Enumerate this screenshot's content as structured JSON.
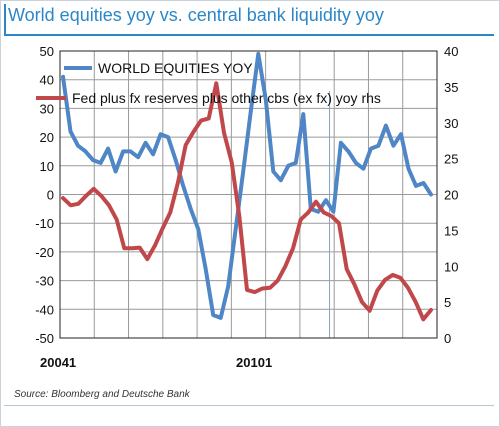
{
  "header": {
    "title": "World equities yoy vs. central bank liquidity yoy"
  },
  "footer": {
    "source": "Source: Bloomberg and Deutsche Bank"
  },
  "colors": {
    "equities": "#4f86c6",
    "liquidity": "#c0484b",
    "accent": "#2b87c8",
    "grid": "#9a9a9a"
  },
  "chart_data": {
    "type": "line",
    "title": "",
    "xlabel": "",
    "ylabel": "",
    "x_tick_labels": [
      "20041",
      "20101"
    ],
    "ylim": [
      -50,
      50
    ],
    "y_ticks": [
      50,
      40,
      30,
      20,
      10,
      0,
      -10,
      -20,
      -30,
      -40,
      -50
    ],
    "y2lim": [
      0,
      40
    ],
    "y2_ticks": [
      40,
      35,
      30,
      25,
      20,
      15,
      10,
      5,
      0
    ],
    "grid": true,
    "legend_position": "top-left",
    "series": [
      {
        "name": "WORLD EQUITIES YOY",
        "axis": "left",
        "values": [
          41,
          22,
          17,
          15,
          12,
          11,
          16,
          8,
          15,
          15,
          13,
          18,
          14,
          21,
          20,
          12,
          3,
          -5,
          -12,
          -26,
          -42,
          -43,
          -32,
          -12,
          8,
          29,
          49,
          33,
          8,
          5,
          10,
          11,
          28,
          -5,
          -6,
          -2,
          -6,
          18,
          15,
          11,
          9,
          16,
          17,
          24,
          17,
          21,
          9,
          3,
          4,
          0
        ]
      },
      {
        "name": "Fed plus fx reserves plus other cbs (ex fx) yoy rhs",
        "axis": "right",
        "values": [
          19.5,
          18.5,
          18.7,
          19.8,
          20.8,
          19.8,
          18.5,
          16.5,
          12.5,
          12.5,
          12.6,
          11.0,
          12.9,
          15.3,
          17.5,
          21.7,
          26.9,
          28.7,
          30.3,
          30.6,
          35.5,
          28.6,
          24.5,
          17.0,
          6.7,
          6.4,
          6.9,
          7.0,
          8.0,
          10.0,
          12.5,
          16.5,
          17.5,
          19.0,
          17.5,
          17.0,
          16.0,
          9.6,
          7.5,
          5.0,
          3.8,
          6.6,
          8.1,
          8.8,
          8.4,
          7.0,
          5.0,
          2.6,
          3.9
        ]
      }
    ]
  }
}
